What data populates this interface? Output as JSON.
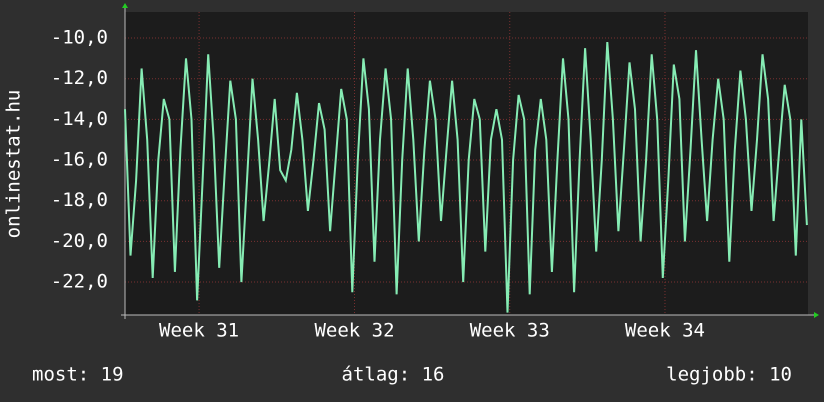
{
  "chart_data": {
    "type": "line",
    "y_label": "onlinestat.hu",
    "legend_items": [
      "most: 19",
      "átlag: 16",
      "legjobb: 10"
    ],
    "xlim": [
      0,
      30.8
    ],
    "xticks": [
      {
        "value": 3.34,
        "label": "Week 31"
      },
      {
        "value": 10.35,
        "label": "Week 32"
      },
      {
        "value": 17.35,
        "label": "Week 33"
      },
      {
        "value": 24.35,
        "label": "Week 34"
      }
    ],
    "ylim": [
      -23.62,
      -8.72
    ],
    "yticks": [
      {
        "value": -22,
        "label": "-22,0"
      },
      {
        "value": -20,
        "label": "-20,0"
      },
      {
        "value": -18,
        "label": "-18,0"
      },
      {
        "value": -16,
        "label": "-16,0"
      },
      {
        "value": -14,
        "label": "-14,0"
      },
      {
        "value": -12,
        "label": "-12,0"
      },
      {
        "value": -10,
        "label": "-10,0"
      }
    ],
    "grid": true,
    "x": [
      0,
      0.25,
      0.5,
      0.75,
      1,
      1.25,
      1.5,
      1.75,
      2,
      2.25,
      2.5,
      2.75,
      3,
      3.25,
      3.5,
      3.75,
      4,
      4.25,
      4.5,
      4.75,
      5,
      5.25,
      5.5,
      5.75,
      6,
      6.25,
      6.5,
      6.75,
      7,
      7.25,
      7.5,
      7.75,
      8,
      8.25,
      8.5,
      8.75,
      9,
      9.25,
      9.5,
      9.75,
      10,
      10.25,
      10.5,
      10.75,
      11,
      11.25,
      11.5,
      11.75,
      12,
      12.25,
      12.5,
      12.75,
      13,
      13.25,
      13.5,
      13.75,
      14,
      14.25,
      14.5,
      14.75,
      15,
      15.25,
      15.5,
      15.75,
      16,
      16.25,
      16.5,
      16.75,
      17,
      17.25,
      17.5,
      17.75,
      18,
      18.25,
      18.5,
      18.75,
      19,
      19.25,
      19.5,
      19.75,
      20,
      20.25,
      20.5,
      20.75,
      21,
      21.25,
      21.5,
      21.75,
      22,
      22.25,
      22.5,
      22.75,
      23,
      23.25,
      23.5,
      23.75,
      24,
      24.25,
      24.5,
      24.75,
      25,
      25.25,
      25.5,
      25.75,
      26,
      26.25,
      26.5,
      26.75,
      27,
      27.25,
      27.5,
      27.75,
      28,
      28.25,
      28.5,
      28.75,
      29,
      29.25,
      29.5,
      29.75,
      30,
      30.25,
      30.5,
      30.75
    ],
    "series": [
      {
        "name": "onlinestat.hu",
        "color": "#86ecb4",
        "values": [
          -13.5,
          -20.7,
          -17,
          -11.5,
          -15,
          -21.8,
          -16,
          -13,
          -14,
          -21.5,
          -15.5,
          -11,
          -14,
          -22.9,
          -17,
          -10.8,
          -15,
          -21.3,
          -16.5,
          -12.1,
          -14,
          -22,
          -17,
          -12,
          -15,
          -19,
          -16.2,
          -13,
          -16.5,
          -17,
          -15.5,
          -12.7,
          -15,
          -18.5,
          -16,
          -13.2,
          -14.5,
          -19.5,
          -16,
          -12.5,
          -14,
          -22.5,
          -16,
          -11,
          -13.5,
          -21,
          -15,
          -11.5,
          -14,
          -22.6,
          -16,
          -11.5,
          -15,
          -20,
          -15.5,
          -12.1,
          -14,
          -19,
          -15.5,
          -12.1,
          -15,
          -22,
          -16,
          -13,
          -14,
          -20.5,
          -15,
          -13.5,
          -15,
          -23.5,
          -16,
          -12.8,
          -14,
          -22.6,
          -15.5,
          -13,
          -15,
          -21.5,
          -16,
          -11,
          -14,
          -22.5,
          -16,
          -10.5,
          -15,
          -20.5,
          -16,
          -10.2,
          -14,
          -19.5,
          -15.5,
          -11.2,
          -13.5,
          -20,
          -16,
          -10.8,
          -14,
          -21.8,
          -17,
          -11.3,
          -13,
          -20,
          -15.5,
          -10.6,
          -15,
          -19,
          -15,
          -12,
          -14,
          -21,
          -15.5,
          -11.6,
          -14,
          -18.5,
          -15,
          -10.8,
          -13,
          -19,
          -15.5,
          -12.3,
          -14,
          -20.7,
          -14,
          -19.2
        ]
      }
    ]
  }
}
